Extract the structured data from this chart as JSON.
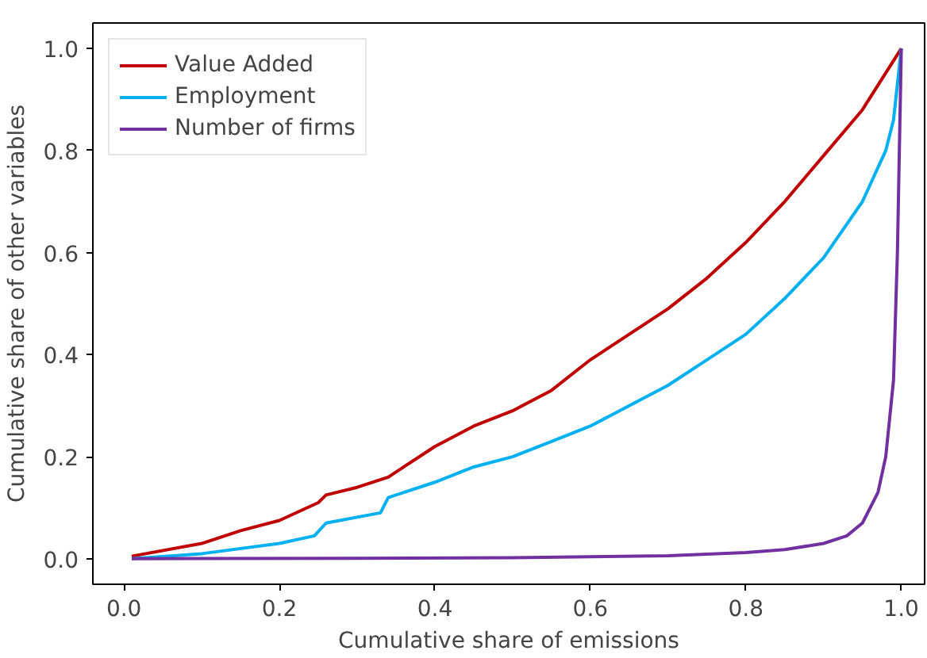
{
  "chart_data": {
    "type": "line",
    "xlabel": "Cumulative share of emissions",
    "ylabel": "Cumulative share of other variables",
    "xlim": [
      -0.04,
      1.03
    ],
    "ylim": [
      -0.05,
      1.05
    ],
    "xticks": [
      {
        "value": 0,
        "label": "0.0"
      },
      0.2,
      0.4,
      0.6,
      0.8,
      {
        "value": 1,
        "label": "1.0"
      }
    ],
    "yticks": [
      {
        "value": 0,
        "label": "0.0"
      },
      0.2,
      0.4,
      0.6,
      0.8,
      {
        "value": 1,
        "label": "1.0"
      }
    ],
    "legend": "top left",
    "grid": false,
    "line_style": "solid",
    "marker": "none",
    "series": [
      {
        "name": "Value Added",
        "color": "#c00000",
        "x": [
          0.01,
          0.1,
          0.15,
          0.2,
          0.25,
          0.26,
          0.3,
          0.34,
          0.4,
          0.45,
          0.5,
          0.55,
          0.6,
          0.65,
          0.7,
          0.75,
          0.8,
          0.85,
          0.9,
          0.95,
          1.0
        ],
        "values": [
          0.005,
          0.03,
          0.055,
          0.075,
          0.11,
          0.125,
          0.14,
          0.16,
          0.22,
          0.26,
          0.29,
          0.33,
          0.39,
          0.44,
          0.49,
          0.55,
          0.62,
          0.7,
          0.79,
          0.88,
          1.0
        ]
      },
      {
        "name": "Employment",
        "color": "#00b0f0",
        "x": [
          0.01,
          0.1,
          0.2,
          0.245,
          0.26,
          0.33,
          0.34,
          0.4,
          0.45,
          0.5,
          0.55,
          0.6,
          0.65,
          0.7,
          0.75,
          0.8,
          0.85,
          0.9,
          0.95,
          0.98,
          0.99,
          1.0
        ],
        "values": [
          0.0,
          0.01,
          0.03,
          0.045,
          0.07,
          0.09,
          0.12,
          0.15,
          0.18,
          0.2,
          0.23,
          0.26,
          0.3,
          0.34,
          0.39,
          0.44,
          0.51,
          0.59,
          0.7,
          0.8,
          0.86,
          1.0
        ]
      },
      {
        "name": "Number of firms",
        "color": "#7030a0",
        "x": [
          0.01,
          0.3,
          0.5,
          0.6,
          0.7,
          0.8,
          0.85,
          0.9,
          0.93,
          0.95,
          0.97,
          0.98,
          0.99,
          0.995,
          1.0
        ],
        "values": [
          0.0,
          0.001,
          0.002,
          0.004,
          0.006,
          0.012,
          0.018,
          0.03,
          0.045,
          0.07,
          0.13,
          0.2,
          0.35,
          0.6,
          1.0
        ]
      }
    ]
  }
}
